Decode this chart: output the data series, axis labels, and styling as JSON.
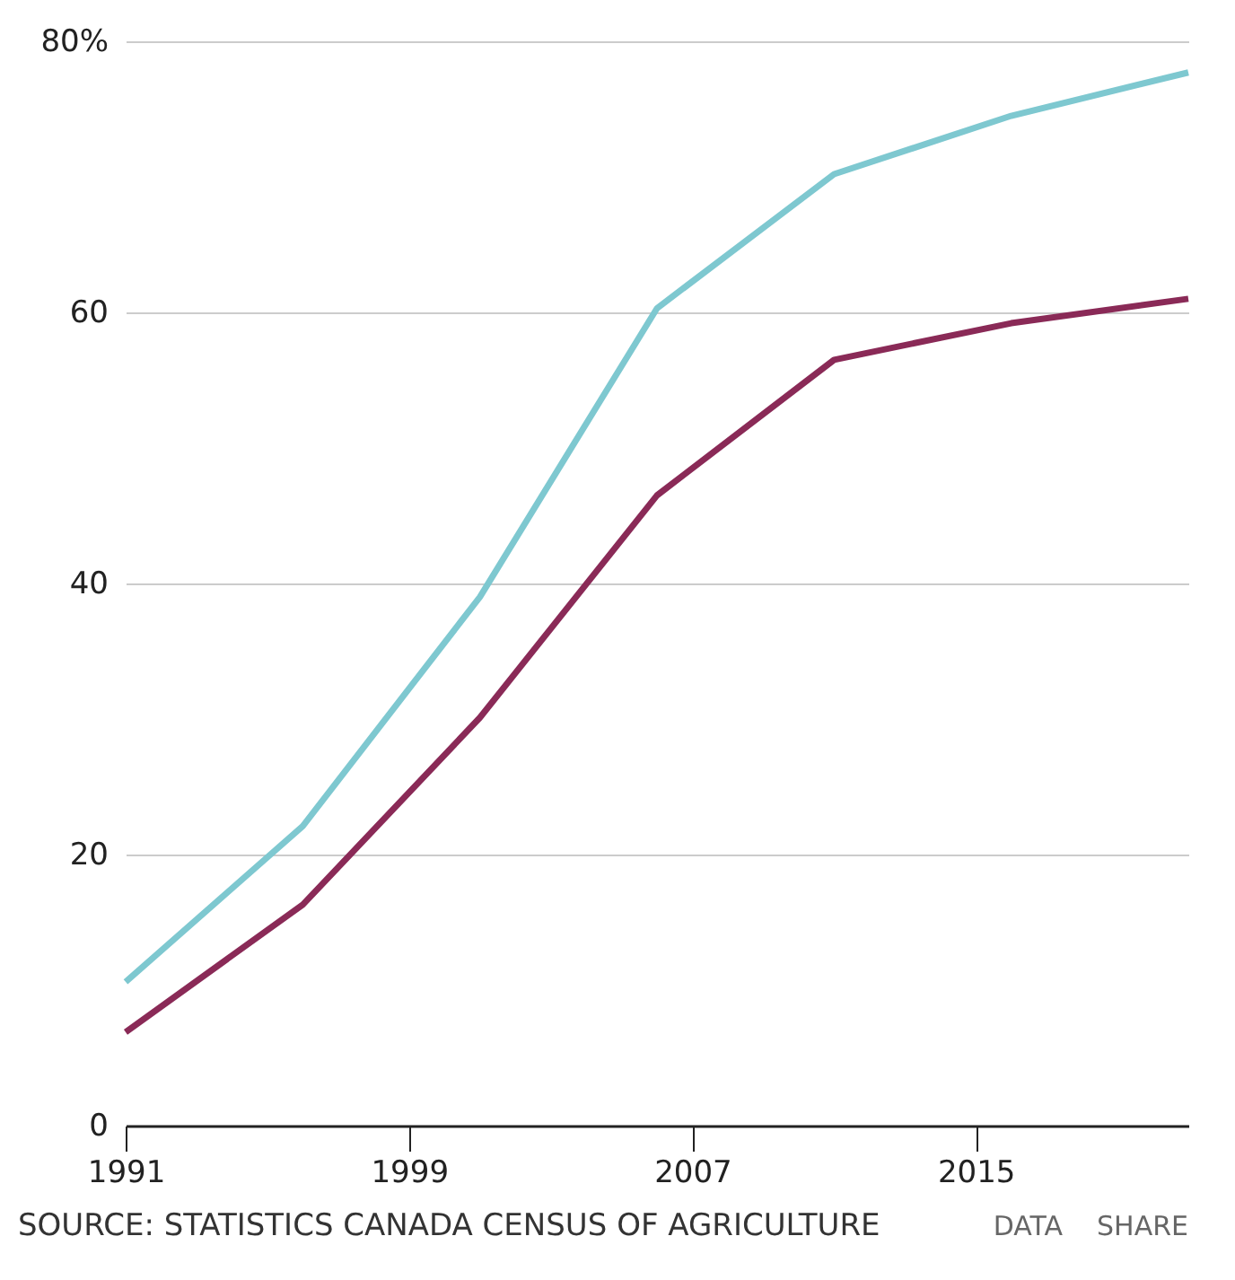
{
  "chart_data": {
    "type": "line",
    "x": [
      1991,
      1996,
      2001,
      2006,
      2011,
      2016,
      2021
    ],
    "series": [
      {
        "color": "#7ec8d0",
        "values": [
          10.6,
          22.1,
          39.0,
          60.3,
          70.2,
          74.5,
          77.7
        ]
      },
      {
        "color": "#8a2a57",
        "values": [
          6.9,
          16.3,
          30.1,
          46.5,
          56.5,
          59.2,
          61.0
        ]
      }
    ],
    "xlim": [
      1991,
      2021
    ],
    "xticks": [
      1991,
      1999,
      2007,
      2015
    ],
    "ylim": [
      0,
      80
    ],
    "yticks": [
      0,
      20,
      40,
      60,
      {
        "value": 80,
        "label": "80%"
      }
    ],
    "grid": "y",
    "legend": false,
    "marker": "none",
    "line_style": "solid",
    "annotations": [
      "SOURCE: STATISTICS CANADA CENSUS OF AGRICULTURE",
      "DATA",
      "SHARE"
    ]
  }
}
